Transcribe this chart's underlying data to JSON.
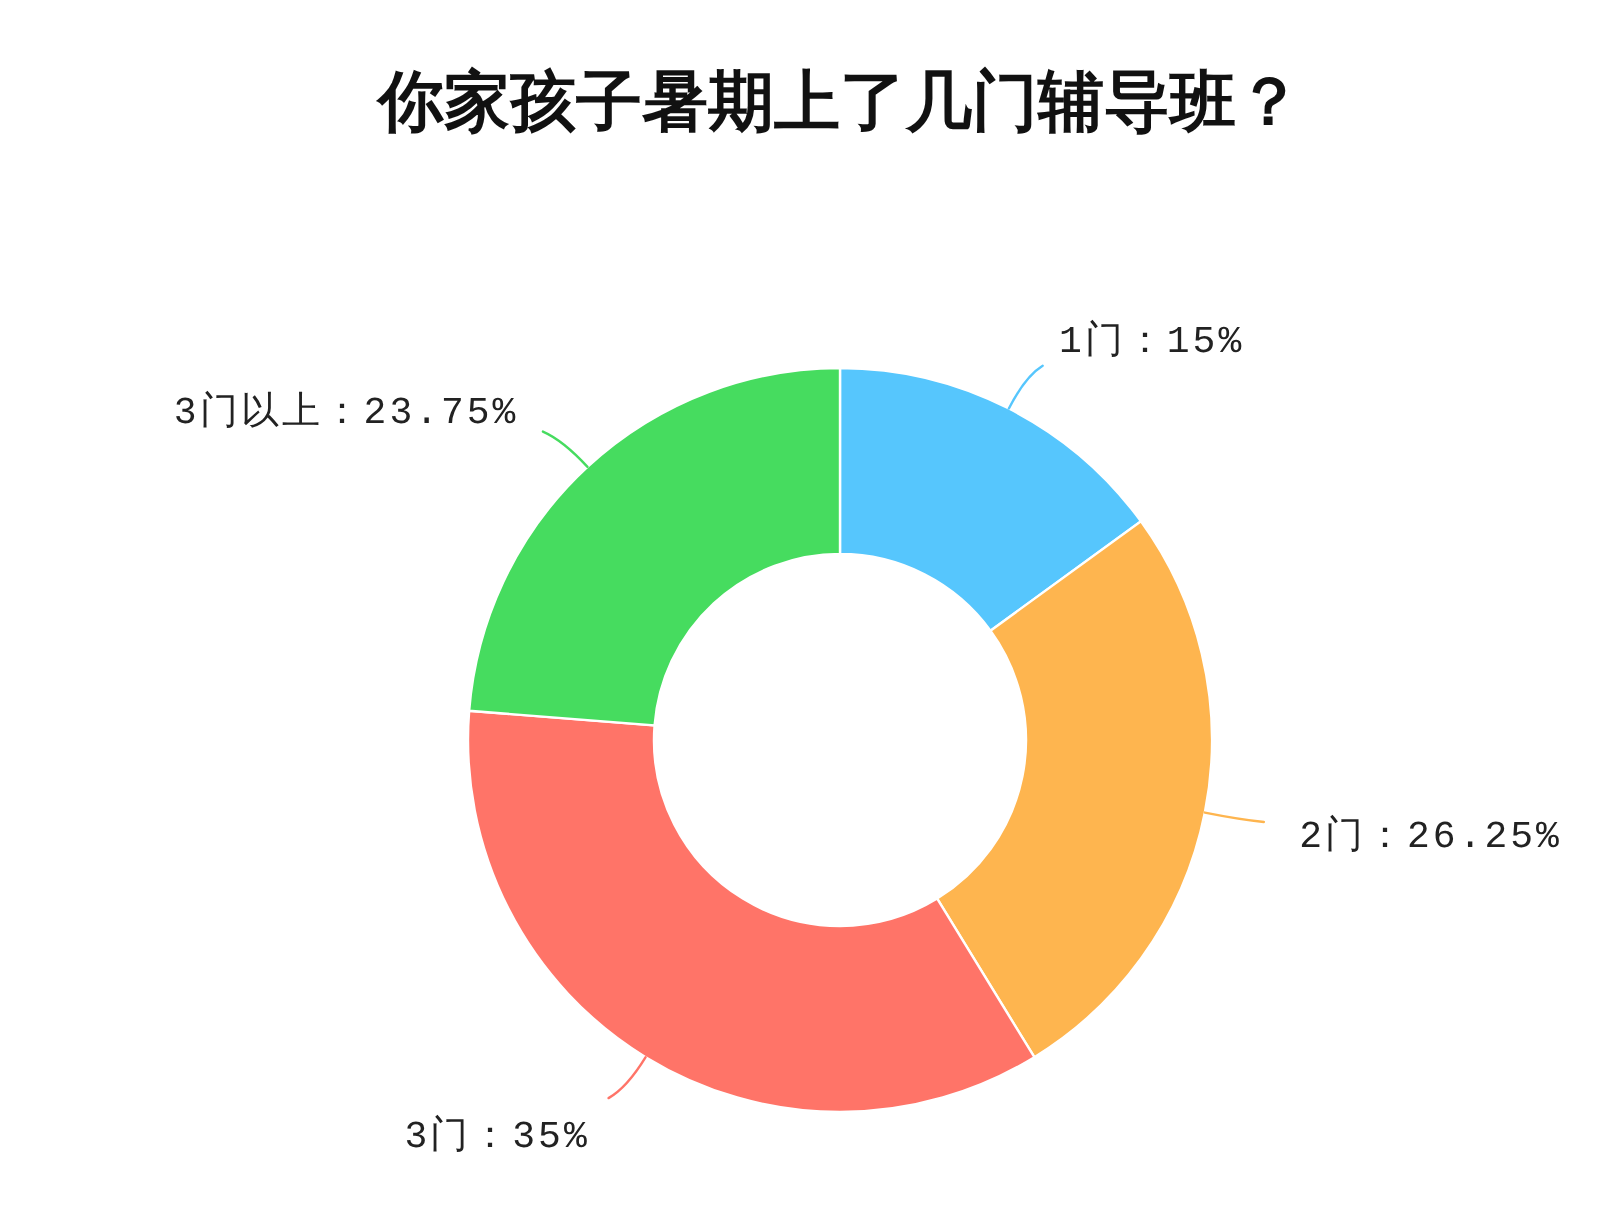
{
  "chart_data": {
    "type": "donut",
    "title": "你家孩子暑期上了几门辅导班？",
    "categories": [
      "1门",
      "2门",
      "3门",
      "3门以上"
    ],
    "values": [
      15,
      26.25,
      35,
      23.75
    ],
    "colors": [
      "#56c6fd",
      "#feb54f",
      "#ff7468",
      "#46dc5f"
    ],
    "value_labels": [
      "：15%",
      "：26.25%",
      "：35%",
      "：23.75%"
    ]
  }
}
